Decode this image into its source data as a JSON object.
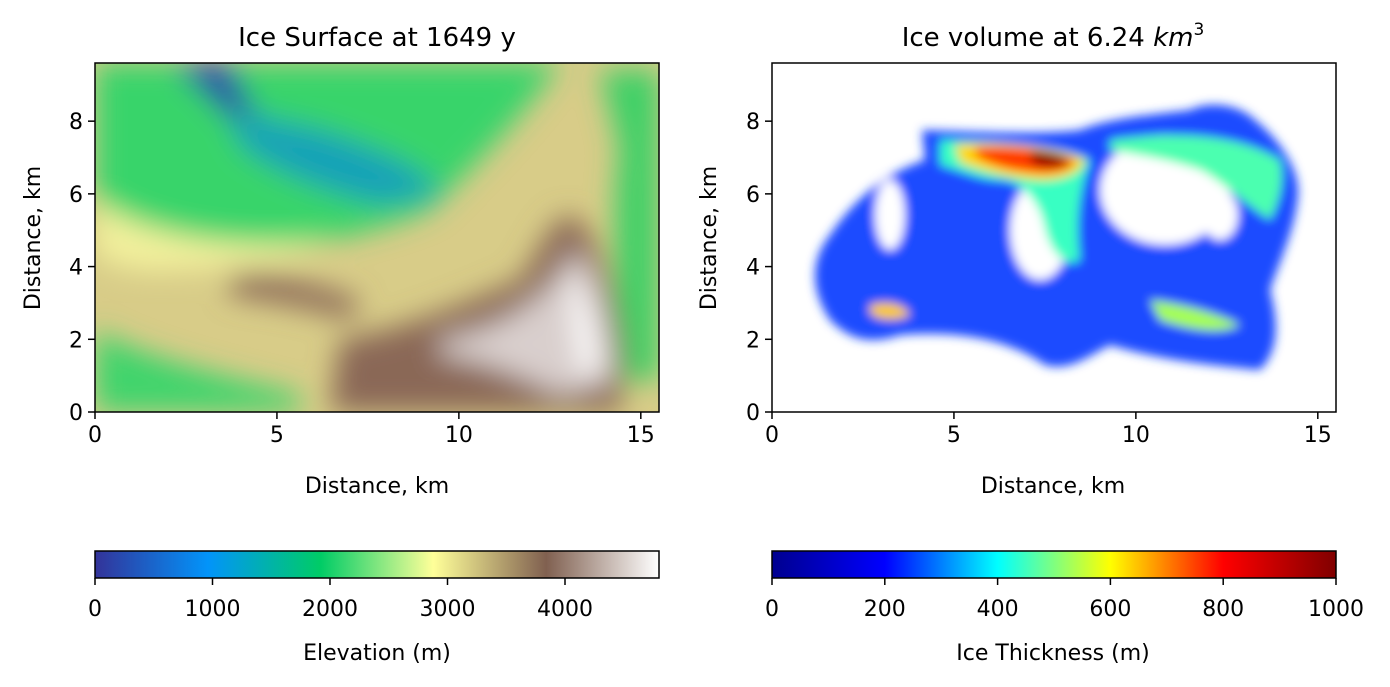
{
  "chart_data": [
    {
      "type": "heatmap",
      "title": "Ice Surface at 1649 y",
      "xlabel": "Distance, km",
      "ylabel": "Distance, km",
      "xlim": [
        0,
        15.5
      ],
      "ylim": [
        0,
        9.6
      ],
      "xticks": [
        "0",
        "5",
        "10",
        "15"
      ],
      "yticks": [
        "0",
        "2",
        "4",
        "6",
        "8"
      ],
      "colormap": "terrain",
      "colorbar": {
        "label": "Elevation (m)",
        "range": [
          0,
          4800
        ],
        "ticks": [
          "0",
          "1000",
          "2000",
          "3000",
          "4000"
        ],
        "orientation": "horizontal",
        "colors": [
          "#333399",
          "#0294fa",
          "#00cc66",
          "#ffff99",
          "#806050",
          "#ffffff"
        ]
      }
    },
    {
      "type": "heatmap",
      "title": "Ice volume at 6.24 ",
      "title_unit": "km",
      "title_exp": "3",
      "xlabel": "Distance, km",
      "ylabel": "Distance, km",
      "xlim": [
        0,
        15.5
      ],
      "ylim": [
        0,
        9.6
      ],
      "xticks": [
        "0",
        "5",
        "10",
        "15"
      ],
      "yticks": [
        "0",
        "2",
        "4",
        "6",
        "8"
      ],
      "colormap": "jet",
      "colorbar": {
        "label": "Ice Thickness (m)",
        "range": [
          0,
          1000
        ],
        "ticks": [
          "0",
          "200",
          "400",
          "600",
          "800",
          "1000"
        ],
        "orientation": "horizontal",
        "colors": [
          "#00008f",
          "#0000ff",
          "#00ffff",
          "#ffff00",
          "#ff0000",
          "#800000"
        ]
      }
    }
  ]
}
